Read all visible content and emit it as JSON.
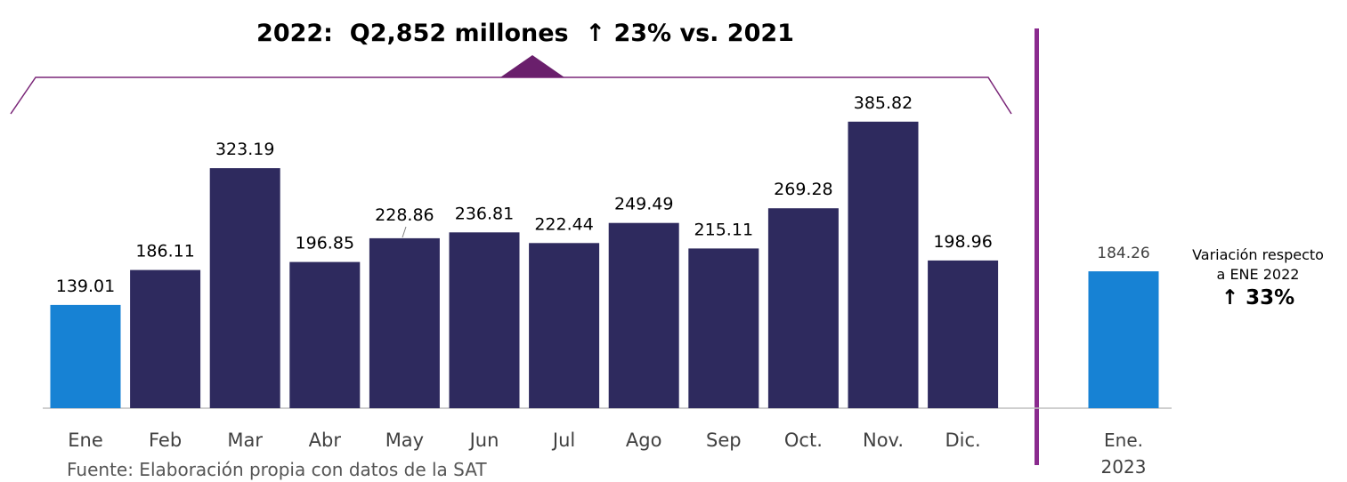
{
  "headline": {
    "year": "2022:",
    "total": "Q2,852 millones",
    "arrow": "↑",
    "change": "23% vs. 2021"
  },
  "side_note": {
    "line1": "Variación respecto",
    "line2": "a ENE 2022",
    "arrow": "↑",
    "change": "33%"
  },
  "source": "Fuente: Elaboración propia con  datos de la SAT",
  "colors": {
    "bar_dark": "#2e2a5e",
    "bar_highlight": "#1782d4",
    "divider": "#8a2b8e",
    "bracket": "#7a2678",
    "axis": "#bfbfbf"
  },
  "chart_data": {
    "type": "bar",
    "title": "",
    "xlabel": "",
    "ylabel": "",
    "ylim": [
      0,
      440
    ],
    "grid": false,
    "categories": [
      "Ene",
      "Feb",
      "Mar",
      "Abr",
      "May",
      "Jun",
      "Jul",
      "Ago",
      "Sep",
      "Oct.",
      "Nov.",
      "Dic.",
      "Ene. 2023"
    ],
    "values": [
      139.01,
      186.11,
      323.19,
      196.85,
      228.86,
      236.81,
      222.44,
      249.49,
      215.11,
      269.28,
      385.82,
      198.96,
      184.26
    ],
    "value_labels": [
      "139.01",
      "186.11",
      "323.19",
      "196.85",
      "228.86",
      "236.81",
      "222.44",
      "249.49",
      "215.11",
      "269.28",
      "385.82",
      "198.96",
      "184.26"
    ],
    "highlighted": [
      "Ene",
      "Ene. 2023"
    ]
  }
}
